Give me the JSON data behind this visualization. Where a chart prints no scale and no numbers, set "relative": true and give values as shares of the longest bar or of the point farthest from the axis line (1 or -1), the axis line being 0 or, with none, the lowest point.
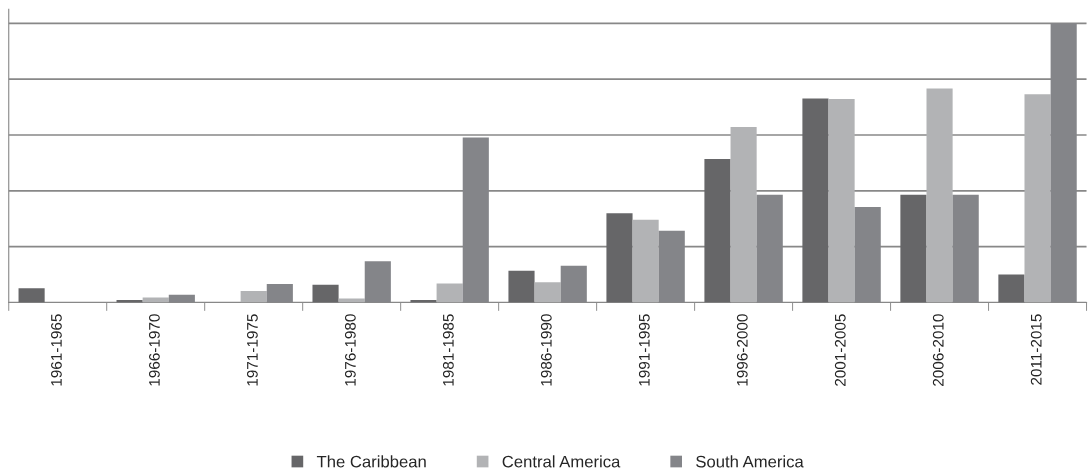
{
  "chart_data": {
    "type": "bar",
    "relative": true,
    "grid": "y",
    "legend": "bottom",
    "categories": [
      "1961-1965",
      "1966-1970",
      "1971-1975",
      "1976-1980",
      "1981-1985",
      "1986-1990",
      "1991-1995",
      "1996-2000",
      "2001-2005",
      "2006-2010",
      "2011-2015"
    ],
    "series": [
      {
        "name": "The Caribbean",
        "color": "#666668",
        "values": [
          0.051,
          0.009,
          0,
          0.064,
          0.009,
          0.114,
          0.32,
          0.514,
          0.731,
          0.386,
          0.1
        ]
      },
      {
        "name": "Central America",
        "color": "#b2b3b5",
        "values": [
          0,
          0.018,
          0.041,
          0.014,
          0.068,
          0.073,
          0.296,
          0.629,
          0.729,
          0.767,
          0.746
        ]
      },
      {
        "name": "South America",
        "color": "#848589",
        "values": [
          0,
          0.028,
          0.066,
          0.148,
          0.591,
          0.132,
          0.257,
          0.386,
          0.342,
          0.386,
          1
        ]
      }
    ]
  }
}
